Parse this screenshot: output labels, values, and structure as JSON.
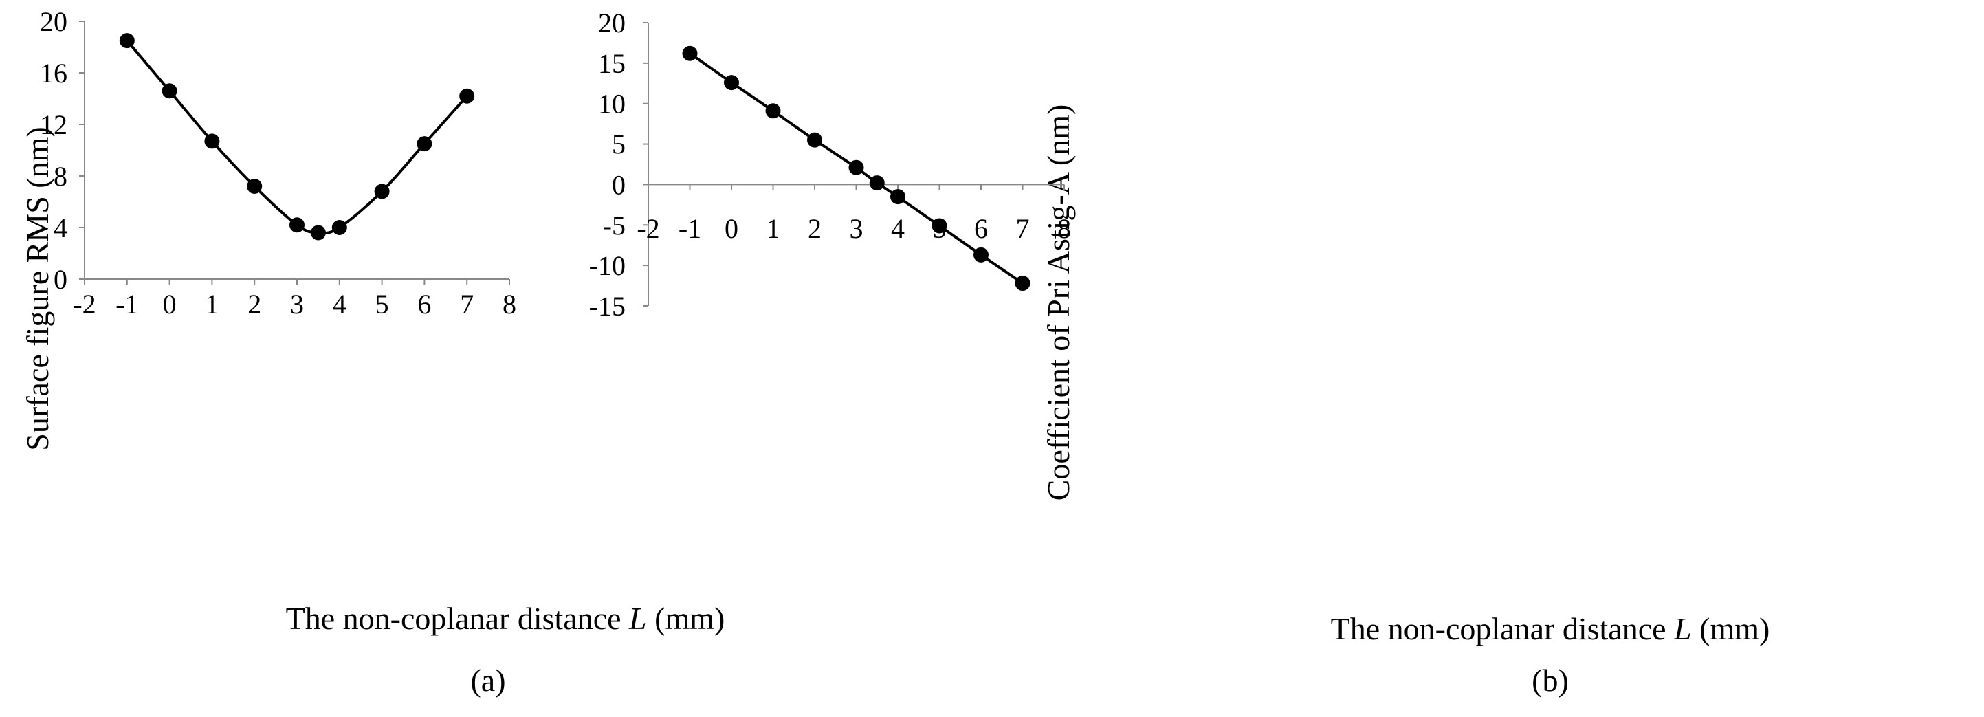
{
  "chart_data": [
    {
      "type": "line",
      "panel": "a",
      "caption": "(a)",
      "xlabel_prefix": "The non-coplanar distance ",
      "xlabel_var": "L",
      "xlabel_suffix": " (mm)",
      "ylabel": "Surface figure RMS (nm)",
      "xlim": [
        -2,
        8
      ],
      "ylim": [
        0,
        20
      ],
      "xticks": [
        "-2",
        "-1",
        "0",
        "1",
        "2",
        "3",
        "4",
        "5",
        "6",
        "7",
        "8"
      ],
      "yticks": [
        "0",
        "4",
        "8",
        "12",
        "16",
        "20"
      ],
      "series": [
        {
          "name": "RMS",
          "x": [
            -1,
            0,
            1,
            2,
            3,
            3.5,
            4,
            5,
            6,
            7
          ],
          "y": [
            18.5,
            14.6,
            10.7,
            7.2,
            4.2,
            3.6,
            4.0,
            6.8,
            10.5,
            14.2
          ]
        }
      ]
    },
    {
      "type": "line",
      "panel": "b",
      "caption": "(b)",
      "xlabel_prefix": "The non-coplanar distance ",
      "xlabel_var": "L",
      "xlabel_suffix": " (mm)",
      "ylabel": "Coefficient of Pri Astig-A (nm)",
      "xlim": [
        -2,
        8
      ],
      "ylim": [
        -15,
        20
      ],
      "xticks": [
        "-2",
        "-1",
        "0",
        "1",
        "2",
        "3",
        "4",
        "5",
        "6",
        "7",
        "8"
      ],
      "yticks": [
        "-15",
        "-10",
        "-5",
        "0",
        "5",
        "10",
        "15",
        "20"
      ],
      "series": [
        {
          "name": "Pri Astig-A",
          "x": [
            -1,
            0,
            1,
            2,
            3,
            3.5,
            4,
            5,
            6,
            7
          ],
          "y": [
            16.2,
            12.6,
            9.1,
            5.5,
            2.1,
            0.2,
            -1.5,
            -5.1,
            -8.7,
            -12.2
          ]
        }
      ]
    }
  ]
}
